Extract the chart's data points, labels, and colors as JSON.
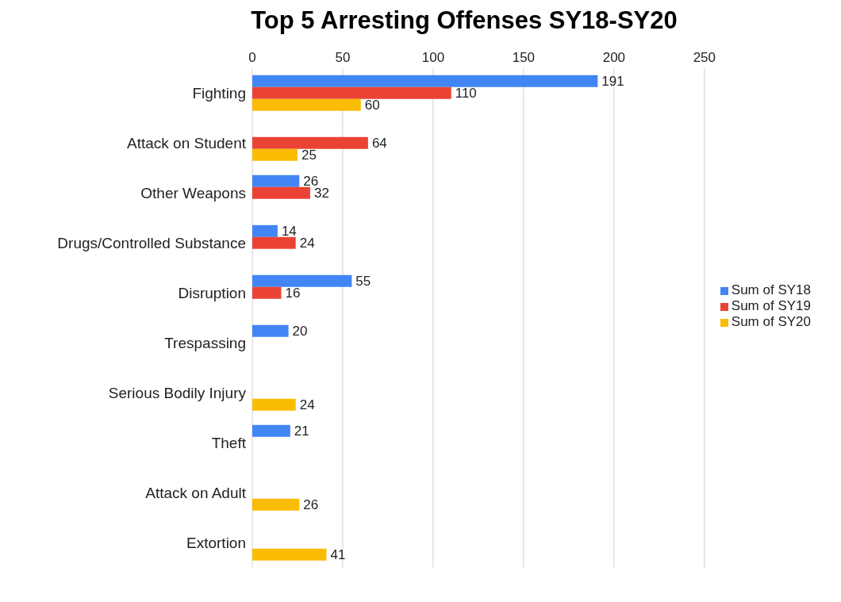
{
  "chart_data": {
    "type": "bar",
    "orientation": "horizontal",
    "title": "Top 5 Arresting Offenses SY18-SY20",
    "categories": [
      "Fighting",
      "Attack on Student",
      "Other Weapons",
      "Drugs/Controlled Substance",
      "Disruption",
      "Trespassing",
      "Serious Bodily Injury",
      "Theft",
      "Attack on Adult",
      "Extortion"
    ],
    "series": [
      {
        "name": "Sum of SY18",
        "color": "#4285f4",
        "values": [
          191,
          null,
          26,
          14,
          55,
          20,
          null,
          21,
          null,
          null
        ]
      },
      {
        "name": "Sum of SY19",
        "color": "#ea4335",
        "values": [
          110,
          64,
          32,
          24,
          16,
          null,
          null,
          null,
          null,
          null
        ]
      },
      {
        "name": "Sum of SY20",
        "color": "#fbbc04",
        "values": [
          60,
          25,
          null,
          null,
          null,
          null,
          24,
          null,
          26,
          41
        ]
      }
    ],
    "xlim": [
      0,
      250
    ],
    "xticks": [
      0,
      50,
      100,
      150,
      200,
      250
    ],
    "grid": "x",
    "legend": "right",
    "data_labels": true
  }
}
